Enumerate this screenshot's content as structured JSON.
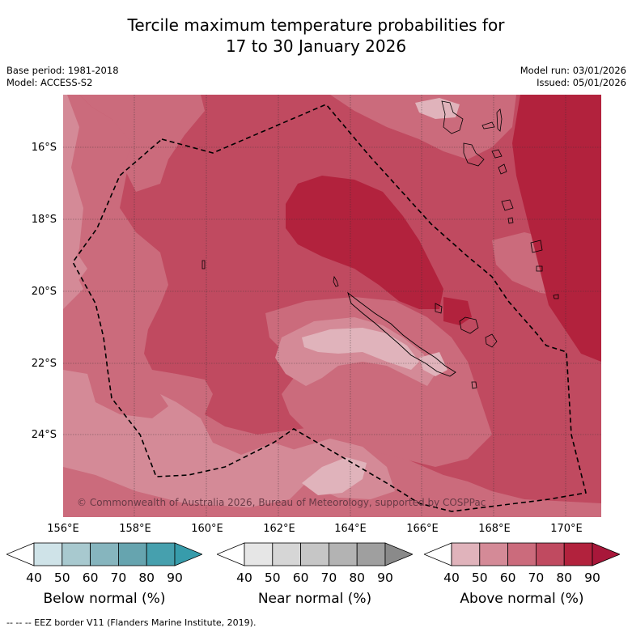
{
  "title": {
    "line1": "Tercile maximum temperature probabilities for",
    "line2": "17 to 30 January 2026"
  },
  "meta": {
    "base_period": "Base period: 1981-2018",
    "model": "Model: ACCESS-S2",
    "model_run": "Model run: 03/01/2026",
    "issued": "Issued: 05/01/2026"
  },
  "map": {
    "lat_labels": [
      "16°S",
      "18°S",
      "20°S",
      "22°S",
      "24°S"
    ],
    "lon_labels": [
      "156°E",
      "158°E",
      "160°E",
      "162°E",
      "164°E",
      "166°E",
      "168°E",
      "170°E"
    ],
    "copyright": "© Commonwealth of Australia 2026, Bureau of Meteorology, supported by COSPPac",
    "colors": {
      "above_50": "#e0b3bb",
      "above_60": "#d48a97",
      "above_70": "#cb6b7c",
      "above_80": "#c04a60",
      "above_90": "#b2223d"
    }
  },
  "colorbars": [
    {
      "title": "Below normal (%)",
      "ticks": [
        "40",
        "50",
        "60",
        "70",
        "80",
        "90"
      ],
      "colors": [
        "#ffffff",
        "#cfe3e8",
        "#a8c9cf",
        "#86b5be",
        "#66a4af",
        "#46a0ae",
        "#379cab"
      ]
    },
    {
      "title": "Near normal (%)",
      "ticks": [
        "40",
        "50",
        "60",
        "70",
        "80",
        "90"
      ],
      "colors": [
        "#ffffff",
        "#e6e6e6",
        "#d6d6d6",
        "#c6c6c6",
        "#b3b3b3",
        "#9f9f9f",
        "#8a8a8a"
      ]
    },
    {
      "title": "Above normal (%)",
      "ticks": [
        "40",
        "50",
        "60",
        "70",
        "80",
        "90"
      ],
      "colors": [
        "#ffffff",
        "#e0b3bb",
        "#d48a97",
        "#cb6b7c",
        "#c04a60",
        "#b2223d",
        "#a8173a"
      ]
    }
  ],
  "legend": {
    "eez": "--  --  -- EEZ border V11 (Flanders Marine Institute, 2019)."
  }
}
